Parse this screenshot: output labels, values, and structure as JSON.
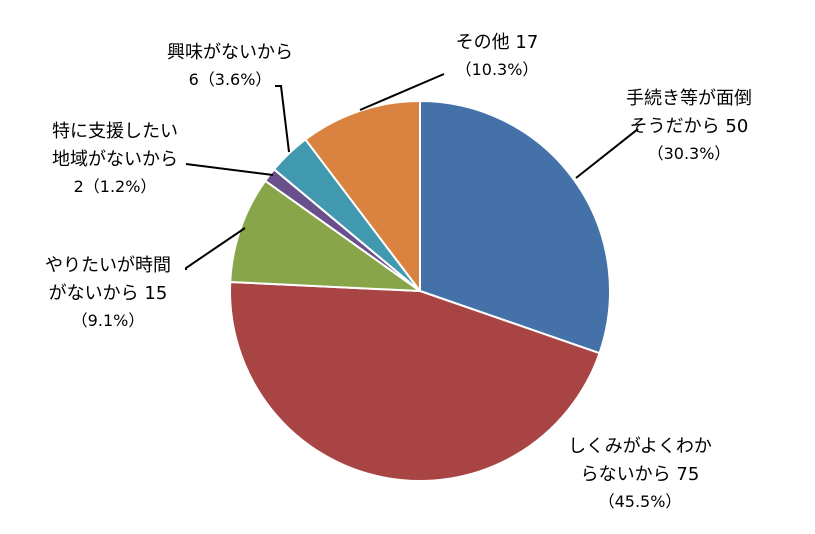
{
  "chart_data": {
    "type": "pie",
    "title": "",
    "start_angle_deg": 0,
    "direction": "clockwise",
    "colors": [
      "#4472a8",
      "#a84544",
      "#88a54a",
      "#6a4f8d",
      "#4199b0",
      "#da8341"
    ],
    "slices": [
      {
        "label_lines": [
          "手続き等が面倒",
          "そうだから 50"
        ],
        "value": 50,
        "percent_text": "（30.3%）"
      },
      {
        "label_lines": [
          "しくみがよくわか",
          "らないから 75"
        ],
        "value": 75,
        "percent_text": "（45.5%）"
      },
      {
        "label_lines": [
          "やりたいが時間",
          "がないから 15"
        ],
        "value": 15,
        "percent_text": "（9.1%）"
      },
      {
        "label_lines": [
          "特に支援したい",
          "地域がないから"
        ],
        "value": 2,
        "percent_text": "2（1.2%）"
      },
      {
        "label_lines": [
          "興味がないから"
        ],
        "value": 6,
        "percent_text": "6（3.6%）"
      },
      {
        "label_lines": [
          "その他 17"
        ],
        "value": 17,
        "percent_text": "（10.3%）"
      }
    ]
  }
}
